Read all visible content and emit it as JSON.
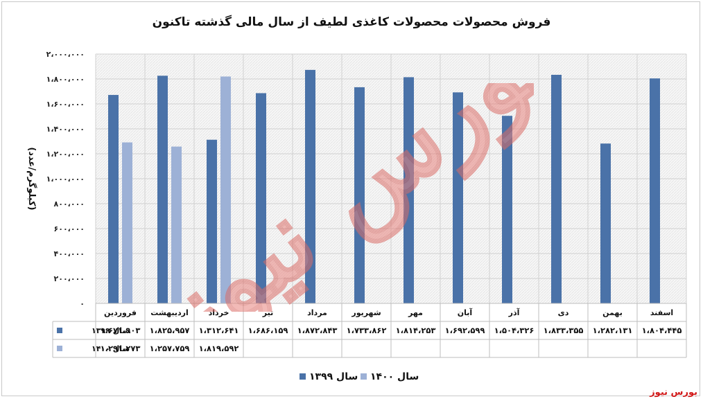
{
  "title": "فروش محصولات محصولات کاغذی لطیف از سال مالی گذشته تاکنون",
  "source": "بورس نیوز",
  "watermark_text": "بورس نیوز",
  "colors": {
    "series_1399": "#4a72a8",
    "series_1400": "#9db1d6",
    "grid": "#d0d0d0",
    "watermark": "#e8837e"
  },
  "chart_data": {
    "type": "bar",
    "title": "فروش محصولات محصولات کاغذی لطیف از سال مالی گذشته تاکنون",
    "ylabel": "(کیلوگرم/عدد)",
    "xlabel": "",
    "ylim": [
      0,
      2000000
    ],
    "y_ticks": [
      0,
      200000,
      400000,
      600000,
      800000,
      1000000,
      1200000,
      1400000,
      1600000,
      1800000,
      2000000
    ],
    "y_tick_labels": [
      "۰",
      "۲۰۰،۰۰۰",
      "۴۰۰،۰۰۰",
      "۶۰۰،۰۰۰",
      "۸۰۰،۰۰۰",
      "۱،۰۰۰،۰۰۰",
      "۱،۲۰۰،۰۰۰",
      "۱،۴۰۰،۰۰۰",
      "۱،۶۰۰،۰۰۰",
      "۱،۸۰۰،۰۰۰",
      "۲،۰۰۰،۰۰۰"
    ],
    "grid": true,
    "legend_position": "bottom",
    "categories": [
      "فروردین",
      "اردیبهشت",
      "خرداد",
      "تیر",
      "مرداد",
      "شهریور",
      "مهر",
      "آبان",
      "آذر",
      "دی",
      "بهمن",
      "اسفند"
    ],
    "series": [
      {
        "name": "سال ۱۳۹۹",
        "values": [
          1671903,
          1825957,
          1312641,
          1686159,
          1872843,
          1733862,
          1814253,
          1692599,
          1504326,
          1833355,
          1282131,
          1804445
        ],
        "labels": [
          "۱،۶۷۱،۹۰۳",
          "۱،۸۲۵،۹۵۷",
          "۱،۳۱۲،۶۴۱",
          "۱،۶۸۶،۱۵۹",
          "۱،۸۷۲،۸۴۳",
          "۱،۷۳۳،۸۶۲",
          "۱،۸۱۴،۲۵۳",
          "۱،۶۹۲،۵۹۹",
          "۱،۵۰۴،۳۲۶",
          "۱،۸۳۳،۳۵۵",
          "۱،۲۸۲،۱۳۱",
          "۱،۸۰۴،۴۴۵"
        ]
      },
      {
        "name": "سال ۱۴۰۰",
        "values": [
          1291273,
          1257759,
          1819592,
          null,
          null,
          null,
          null,
          null,
          null,
          null,
          null,
          null
        ],
        "labels": [
          "۱،۲۹۱،۲۷۳",
          "۱،۲۵۷،۷۵۹",
          "۱،۸۱۹،۵۹۲",
          "",
          "",
          "",
          "",
          "",
          "",
          "",
          "",
          ""
        ]
      }
    ]
  }
}
